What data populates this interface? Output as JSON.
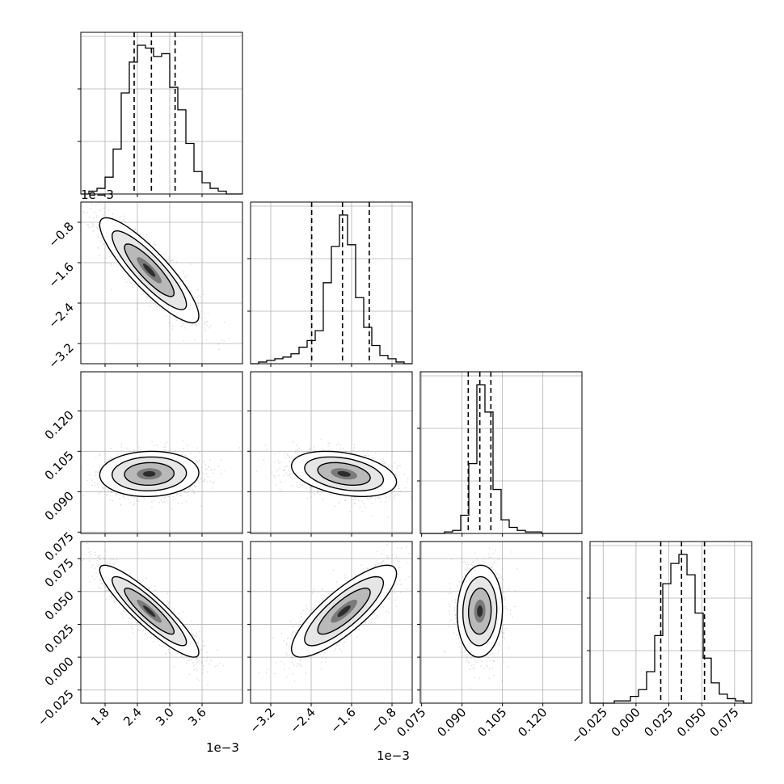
{
  "chart_data": {
    "type": "corner",
    "grid": true,
    "parameters": [
      {
        "ticks": [
          "1.8",
          "2.4",
          "3.0",
          "3.6"
        ],
        "tickvals": [
          0.0018,
          0.0024,
          0.003,
          0.0036
        ],
        "range": [
          0.00135,
          0.00435
        ],
        "offset": "1e−3"
      },
      {
        "ticks": [
          "−3.2",
          "−2.4",
          "−1.6",
          "−0.8"
        ],
        "tickvals": [
          -0.0032,
          -0.0024,
          -0.0016,
          -0.0008
        ],
        "range": [
          -0.0036,
          -0.0004
        ],
        "offset": "1e−3"
      },
      {
        "ticks": [
          "0.075",
          "0.090",
          "0.105",
          "0.120"
        ],
        "tickvals": [
          0.075,
          0.09,
          0.105,
          0.12
        ],
        "range": [
          0.0745,
          0.1345
        ],
        "offset": ""
      },
      {
        "ticks": [
          "−0.025",
          "0.000",
          "0.025",
          "0.050",
          "0.075"
        ],
        "tickvals": [
          -0.025,
          0.0,
          0.025,
          0.05,
          0.075
        ],
        "range": [
          -0.035,
          0.088
        ],
        "offset": ""
      }
    ],
    "quantiles": [
      [
        0.00234,
        0.00266,
        0.0031
      ],
      [
        -0.00239,
        -0.00178,
        -0.00125
      ],
      [
        0.0923,
        0.0966,
        0.1007
      ],
      [
        0.0188,
        0.0346,
        0.0521
      ]
    ],
    "histograms": [
      [
        0,
        1,
        2,
        6,
        16,
        36,
        47,
        53,
        52,
        49,
        50,
        38,
        30,
        18,
        8,
        4,
        2,
        1,
        0,
        0
      ],
      [
        0,
        1,
        2,
        3,
        4,
        6,
        10,
        14,
        20,
        49,
        71,
        90,
        72,
        40,
        22,
        11,
        5,
        3,
        1,
        0
      ],
      [
        0,
        0,
        0,
        1,
        2,
        12,
        46,
        98,
        80,
        29,
        9,
        4,
        2,
        1,
        1,
        0,
        0,
        0,
        0,
        0
      ],
      [
        0,
        0,
        0,
        1,
        1,
        3,
        6,
        14,
        30,
        53,
        62,
        66,
        57,
        40,
        20,
        9,
        4,
        2,
        1,
        0
      ]
    ],
    "pairs": [
      {
        "x": 0,
        "y": 1,
        "center": [
          0.00262,
          -0.00175
        ],
        "sigma": [
          0.00046,
          0.00052
        ],
        "rho": -0.87
      },
      {
        "x": 0,
        "y": 2,
        "center": [
          0.00262,
          0.0966
        ],
        "sigma": [
          0.00046,
          0.0042
        ],
        "rho": 0.05
      },
      {
        "x": 1,
        "y": 2,
        "center": [
          -0.00175,
          0.0966
        ],
        "sigma": [
          0.00052,
          0.0042
        ],
        "rho": -0.35
      },
      {
        "x": 0,
        "y": 3,
        "center": [
          0.00262,
          0.035
        ],
        "sigma": [
          0.00046,
          0.0175
        ],
        "rho": -0.9
      },
      {
        "x": 1,
        "y": 3,
        "center": [
          -0.00175,
          0.035
        ],
        "sigma": [
          0.00052,
          0.0175
        ],
        "rho": 0.82
      },
      {
        "x": 2,
        "y": 3,
        "center": [
          0.0966,
          0.035
        ],
        "sigma": [
          0.0042,
          0.0175
        ],
        "rho": 0.05
      }
    ]
  }
}
